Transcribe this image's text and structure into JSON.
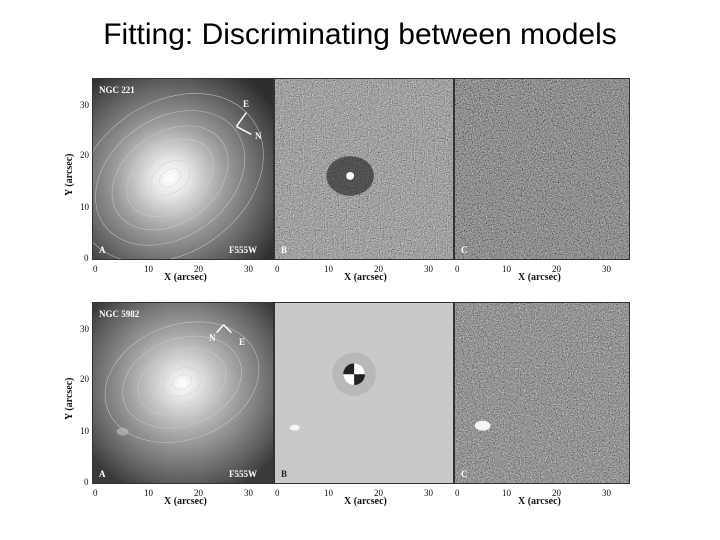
{
  "slide": {
    "title": "Fitting: Discriminating between models"
  },
  "figure": {
    "rows": [
      {
        "galaxy": "NGC 221",
        "filter": "F555W",
        "compass": [
          "E",
          "N"
        ],
        "panels": [
          "A",
          "B",
          "C"
        ],
        "y_label": "Y (arcsec)",
        "x_label": "X (arcsec)",
        "y_ticks": [
          "0",
          "10",
          "20",
          "30"
        ],
        "x_ticks": [
          "0",
          "10",
          "20",
          "30"
        ]
      },
      {
        "galaxy": "NGC 5982",
        "filter": "F555W",
        "compass": [
          "N",
          "E"
        ],
        "panels": [
          "A",
          "B",
          "C"
        ],
        "y_label": "Y (arcsec)",
        "x_label": "X (arcsec)",
        "y_ticks": [
          "0",
          "10",
          "20",
          "30"
        ],
        "x_ticks": [
          "0",
          "10",
          "20",
          "30"
        ]
      }
    ]
  }
}
